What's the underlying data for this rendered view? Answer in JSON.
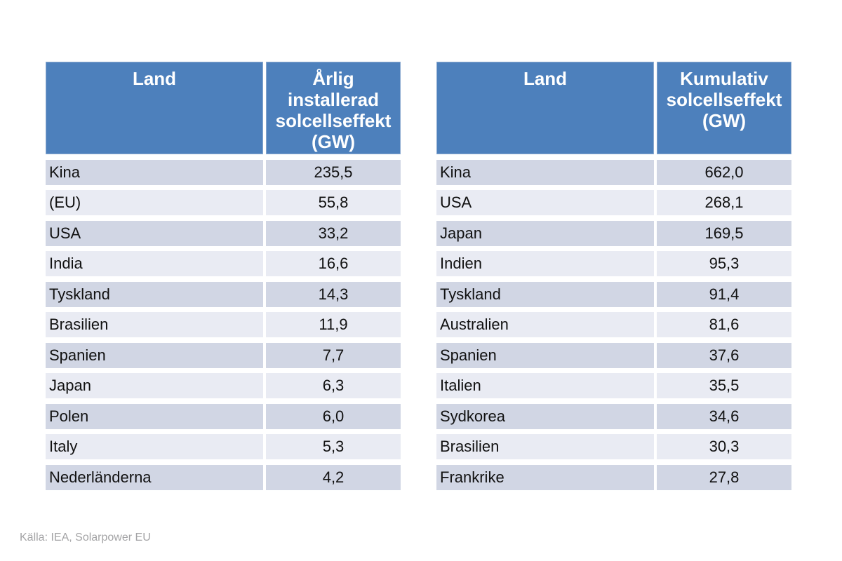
{
  "page": {
    "background": "#ffffff"
  },
  "colors": {
    "header_bg": "#4d80bc",
    "header_border": "#8aa9cf",
    "header_text": "#ffffff",
    "row_odd_bg": "#d1d6e4",
    "row_even_bg": "#e9ebf3",
    "body_text": "#111111",
    "source_text": "#a4a4a6"
  },
  "tables": [
    {
      "name": "annual-installed-solar",
      "header": {
        "land": "Land",
        "value": "Årlig installerad solcellseffekt (GW)"
      },
      "rows": [
        [
          "Kina",
          "235,5"
        ],
        [
          "(EU)",
          "55,8"
        ],
        [
          "USA",
          "33,2"
        ],
        [
          "India",
          "16,6"
        ],
        [
          "Tyskland",
          "14,3"
        ],
        [
          "Brasilien",
          "11,9"
        ],
        [
          "Spanien",
          "7,7"
        ],
        [
          "Japan",
          "6,3"
        ],
        [
          "Polen",
          "6,0"
        ],
        [
          "Italy",
          "5,3"
        ],
        [
          "Nederländerna",
          "4,2"
        ]
      ]
    },
    {
      "name": "cumulative-solar",
      "header": {
        "land": "Land",
        "value": "Kumulativ solcellseffekt (GW)"
      },
      "rows": [
        [
          "Kina",
          "662,0"
        ],
        [
          "USA",
          "268,1"
        ],
        [
          "Japan",
          "169,5"
        ],
        [
          "Indien",
          "95,3"
        ],
        [
          "Tyskland",
          "91,4"
        ],
        [
          "Australien",
          "81,6"
        ],
        [
          "Spanien",
          "37,6"
        ],
        [
          "Italien",
          "35,5"
        ],
        [
          "Sydkorea",
          "34,6"
        ],
        [
          "Brasilien",
          "30,3"
        ],
        [
          "Frankrike",
          "27,8"
        ]
      ]
    }
  ],
  "source_note": "Källa: IEA, Solarpower EU",
  "chart_data": [
    {
      "type": "table",
      "title": "Årlig installerad solcellseffekt (GW)",
      "columns": [
        "Land",
        "Årlig installerad solcellseffekt (GW)"
      ],
      "rows": [
        [
          "Kina",
          235.5
        ],
        [
          "(EU)",
          55.8
        ],
        [
          "USA",
          33.2
        ],
        [
          "India",
          16.6
        ],
        [
          "Tyskland",
          14.3
        ],
        [
          "Brasilien",
          11.9
        ],
        [
          "Spanien",
          7.7
        ],
        [
          "Japan",
          6.3
        ],
        [
          "Polen",
          6.0
        ],
        [
          "Italy",
          5.3
        ],
        [
          "Nederländerna",
          4.2
        ]
      ]
    },
    {
      "type": "table",
      "title": "Kumulativ solcellseffekt (GW)",
      "columns": [
        "Land",
        "Kumulativ solcellseffekt (GW)"
      ],
      "rows": [
        [
          "Kina",
          662.0
        ],
        [
          "USA",
          268.1
        ],
        [
          "Japan",
          169.5
        ],
        [
          "Indien",
          95.3
        ],
        [
          "Tyskland",
          91.4
        ],
        [
          "Australien",
          81.6
        ],
        [
          "Spanien",
          37.6
        ],
        [
          "Italien",
          35.5
        ],
        [
          "Sydkorea",
          34.6
        ],
        [
          "Brasilien",
          30.3
        ],
        [
          "Frankrike",
          27.8
        ]
      ]
    }
  ]
}
